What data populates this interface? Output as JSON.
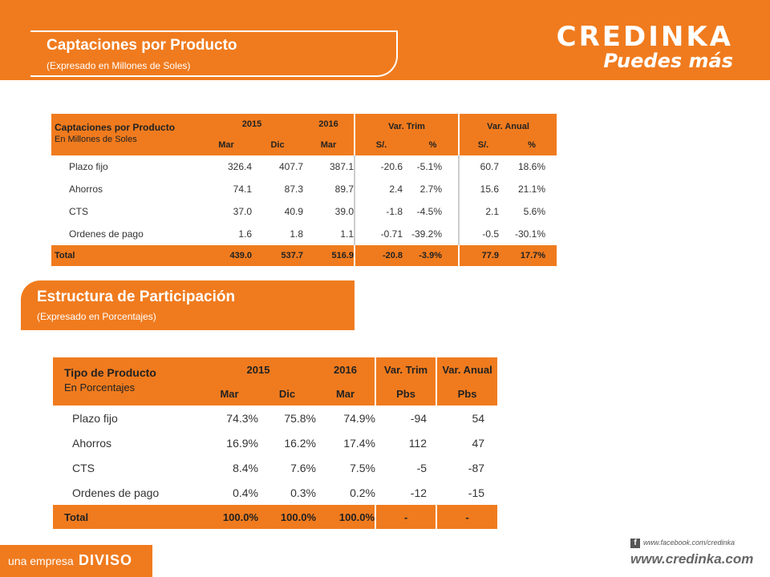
{
  "header": {
    "title": "Captaciones por Producto",
    "subtitle": "(Expresado en Millones de Soles)",
    "brand": "CREDINKA",
    "slogan": "Puedes más"
  },
  "table1": {
    "title": "Captaciones por Producto",
    "subtitle": "En Millones de Soles",
    "year_2015": "2015",
    "year_2016": "2016",
    "var_trim": "Var. Trim",
    "var_anual": "Var. Anual",
    "cols": [
      "Mar",
      "Dic",
      "Mar",
      "S/.",
      "%",
      "S/.",
      "%"
    ],
    "rows": [
      {
        "label": "Plazo fijo",
        "values": [
          "326.4",
          "407.7",
          "387.1",
          "-20.6",
          "-5.1%",
          "60.7",
          "18.6%"
        ]
      },
      {
        "label": "Ahorros",
        "values": [
          "74.1",
          "87.3",
          "89.7",
          "2.4",
          "2.7%",
          "15.6",
          "21.1%"
        ]
      },
      {
        "label": "CTS",
        "values": [
          "37.0",
          "40.9",
          "39.0",
          "-1.8",
          "-4.5%",
          "2.1",
          "5.6%"
        ]
      },
      {
        "label": "Ordenes de pago",
        "values": [
          "1.6",
          "1.8",
          "1.1",
          "-0.71",
          "-39.2%",
          "-0.5",
          "-30.1%"
        ]
      }
    ],
    "total": {
      "label": "Total",
      "values": [
        "439.0",
        "537.7",
        "516.9",
        "-20.8",
        "-3.9%",
        "77.9",
        "17.7%"
      ]
    }
  },
  "section2": {
    "title": "Estructura de Participación",
    "subtitle": "(Expresado en  Porcentajes)"
  },
  "table2": {
    "title": "Tipo de Producto",
    "subtitle": "En Porcentajes",
    "year_2015": "2015",
    "year_2016": "2016",
    "var_trim": "Var. Trim",
    "var_anual": "Var. Anual",
    "cols": [
      "Mar",
      "Dic",
      "Mar",
      "Pbs",
      "Pbs"
    ],
    "rows": [
      {
        "label": "Plazo fijo",
        "values": [
          "74.3%",
          "75.8%",
          "74.9%",
          "-94",
          "54"
        ]
      },
      {
        "label": "Ahorros",
        "values": [
          "16.9%",
          "16.2%",
          "17.4%",
          "112",
          "47"
        ]
      },
      {
        "label": "CTS",
        "values": [
          "8.4%",
          "7.6%",
          "7.5%",
          "-5",
          "-87"
        ]
      },
      {
        "label": "Ordenes de pago",
        "values": [
          "0.4%",
          "0.3%",
          "0.2%",
          "-12",
          "-15"
        ]
      }
    ],
    "total": {
      "label": "Total",
      "values": [
        "100.0%",
        "100.0%",
        "100.0%",
        "-",
        "-"
      ]
    }
  },
  "footer": {
    "company_prefix": "una empresa",
    "company_name": "DIVISO",
    "facebook": "www.facebook.com/credinka",
    "website": "www.credinka.com"
  },
  "colors": {
    "accent": "#F07B1E"
  }
}
